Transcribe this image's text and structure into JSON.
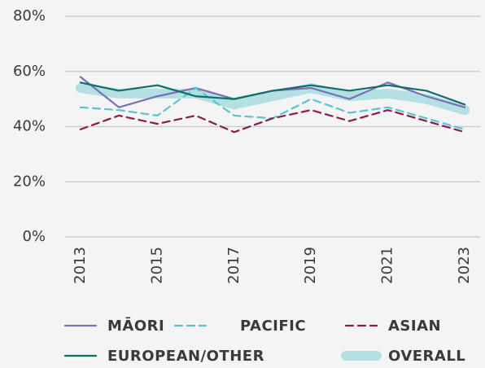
{
  "chart_data": {
    "type": "line",
    "x": [
      2013,
      2014,
      2015,
      2016,
      2017,
      2018,
      2019,
      2020,
      2021,
      2022,
      2023
    ],
    "xlim": [
      2012.6,
      2023.4
    ],
    "xticks": [
      2013,
      2015,
      2017,
      2019,
      2021,
      2023
    ],
    "ylim": [
      0,
      80
    ],
    "yticks": [
      {
        "value": 0,
        "label": "0%"
      },
      {
        "value": 20,
        "label": "20%"
      },
      {
        "value": 40,
        "label": "40%"
      },
      {
        "value": 60,
        "label": "60%"
      },
      {
        "value": 80,
        "label": "80%"
      }
    ],
    "grid": true,
    "legend": "bottom",
    "series": [
      {
        "name": "MĀORI",
        "color": "#7a70b4",
        "style": "solid",
        "values": [
          58,
          47,
          51,
          54,
          50,
          53,
          54,
          50,
          56,
          51,
          47
        ]
      },
      {
        "name": "PACIFIC",
        "color": "#5bc3cf",
        "style": "dashed",
        "values": [
          47,
          46,
          44,
          54,
          44,
          43,
          50,
          45,
          47,
          43,
          39
        ]
      },
      {
        "name": "ASIAN",
        "color": "#8a1b50",
        "style": "dashed",
        "values": [
          39,
          44,
          41,
          44,
          38,
          43,
          46,
          42,
          46,
          42,
          38
        ]
      },
      {
        "name": "EUROPEAN/OTHER",
        "color": "#0f6e6a",
        "style": "solid",
        "values": [
          56,
          53,
          55,
          51,
          50,
          53,
          55,
          53,
          55,
          53,
          48
        ]
      },
      {
        "name": "OVERALL",
        "color": "#b5e0e3",
        "style": "band",
        "values": [
          54,
          52,
          52,
          52,
          48,
          51,
          54,
          51,
          52,
          50,
          46
        ]
      }
    ]
  }
}
